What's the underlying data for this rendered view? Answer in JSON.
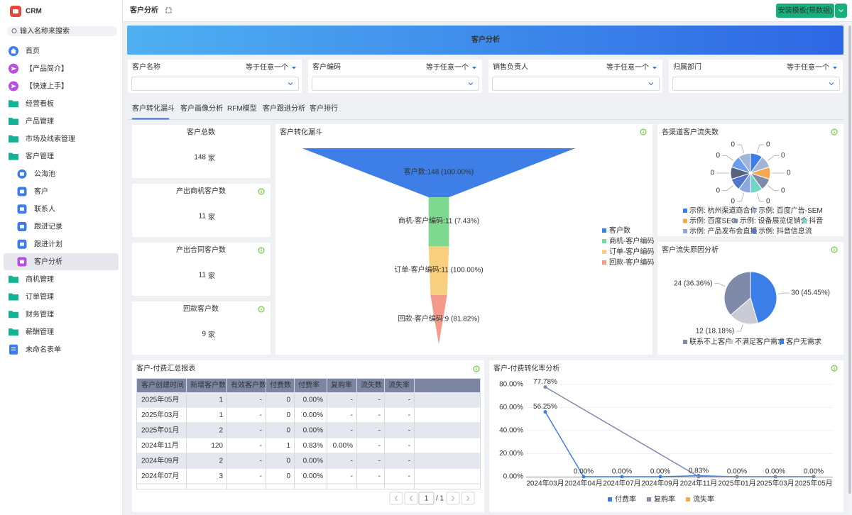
{
  "sidebar": {
    "app": "CRM",
    "search": "输入名称来搜索",
    "active_index": 12,
    "menu": [
      {
        "label": "首页",
        "level": 0
      },
      {
        "label": "【产品简介】",
        "level": 0
      },
      {
        "label": "【快速上手】",
        "level": 0
      },
      {
        "label": "经营看板",
        "level": 0
      },
      {
        "label": "产品管理",
        "level": 0
      },
      {
        "label": "市场及线索管理",
        "level": 0
      },
      {
        "label": "客户管理",
        "level": 0
      },
      {
        "label": "公海池",
        "level": 1
      },
      {
        "label": "客户",
        "level": 1
      },
      {
        "label": "联系人",
        "level": 1
      },
      {
        "label": "跟进记录",
        "level": 1
      },
      {
        "label": "跟进计划",
        "level": 1
      },
      {
        "label": "客户分析",
        "level": 1
      },
      {
        "label": "商机管理",
        "level": 0
      },
      {
        "label": "订单管理",
        "level": 0
      },
      {
        "label": "财务管理",
        "level": 0
      },
      {
        "label": "薪酬管理",
        "level": 0
      },
      {
        "label": "未命名表单",
        "level": 0
      }
    ]
  },
  "header": {
    "title": "客户分析",
    "button": "安装模板(带数据)"
  },
  "banner": "客户分析",
  "filters": [
    {
      "label": "客户名称",
      "mode": "等于任意一个"
    },
    {
      "label": "客户编码",
      "mode": "等于任意一个"
    },
    {
      "label": "销售负责人",
      "mode": "等于任意一个"
    },
    {
      "label": "归属部门",
      "mode": "等于任意一个"
    }
  ],
  "tabs": {
    "items": [
      "客户转化漏斗",
      "客户画像分析",
      "RFM模型",
      "客户跟进分析",
      "客户排行"
    ],
    "active_index": 0
  },
  "kpis": [
    {
      "title": "客户总数",
      "value": 148,
      "unit": "家"
    },
    {
      "title": "产出商机客户数",
      "value": 11,
      "unit": "家"
    },
    {
      "title": "产出合同客户数",
      "value": 11,
      "unit": "家"
    },
    {
      "title": "回款客户数",
      "value": 9,
      "unit": "家"
    }
  ],
  "funnel": {
    "type": "funnel",
    "title": "客户转化漏斗",
    "categories": [
      "客户数",
      "商机-客户编码",
      "订单-客户编码",
      "回款-客户编码"
    ],
    "values": [
      148,
      11,
      11,
      9
    ],
    "value_labels": [
      "客户数:148 (100.00%)",
      "商机-客户编码:11 (7.43%)",
      "订单-客户编码:11 (100.00%)",
      "回款-客户编码:9 (81.82%)"
    ],
    "colors": [
      "#3d7fe6",
      "#7fd88f",
      "#f7cf7e",
      "#f49a8a"
    ]
  },
  "channel_pie": {
    "type": "pie",
    "title": "各渠道客户流失数",
    "categories": [
      "示例: 杭州渠道商合作",
      "示例: 百度广告-SEM",
      "示例: 百度SEO",
      "示例: 设备展览促销会",
      "抖音",
      "示例: 产品发布会直播",
      "示例: 抖音信息流",
      null,
      null,
      null
    ],
    "values": [
      0,
      0,
      0,
      0,
      0,
      0,
      0,
      0,
      0,
      0
    ],
    "colors": [
      "#3b7ee8",
      "#a3b4d4",
      "#f5a852",
      "#7f8aa8",
      "#71d6c6",
      "#8ea6e0",
      "#4f76c8",
      "#56627f",
      "#6b9df0",
      "#9fb6d8"
    ]
  },
  "reason_pie": {
    "type": "pie",
    "title": "客户流失原因分析",
    "categories": [
      "客户无需求",
      "不满足客户需求",
      "联系不上客户"
    ],
    "values": [
      30,
      12,
      24
    ],
    "value_labels": [
      "30 (45.45%)",
      "12 (18.18%)",
      "24 (36.36%)"
    ],
    "colors": [
      "#3b7ee8",
      "#c8cbd3",
      "#7f8aa8"
    ]
  },
  "table": {
    "title": "客户-付费汇总报表",
    "columns": [
      "客户创建时间",
      "新增客户数",
      "有效客户数",
      "付费数",
      "付费率",
      "复购率",
      "流失数",
      "流失率"
    ],
    "rows": [
      [
        "2025年05月",
        1,
        "-",
        0,
        "0.00%",
        "-",
        "-",
        "-"
      ],
      [
        "2025年03月",
        1,
        "-",
        0,
        "0.00%",
        "-",
        "-",
        "-"
      ],
      [
        "2025年01月",
        2,
        "-",
        0,
        "0.00%",
        "-",
        "-",
        "-"
      ],
      [
        "2024年11月",
        120,
        "-",
        1,
        "0.83%",
        "0.00%",
        "-",
        "-"
      ],
      [
        "2024年09月",
        2,
        "-",
        0,
        "0.00%",
        "-",
        "-",
        "-"
      ],
      [
        "2024年07月",
        3,
        "-",
        0,
        "0.00%",
        "-",
        "-",
        "-"
      ]
    ],
    "pagination": {
      "page": 1,
      "total": "/ 1"
    }
  },
  "conversion_line": {
    "type": "line",
    "title": "客户-付费转化率分析",
    "categories": [
      "2024年03月",
      "2024年04月",
      "2024年07月",
      "2024年09月",
      "2024年11月",
      "2025年01月",
      "2025年03月",
      "2025年05月"
    ],
    "ylim": [
      0,
      80
    ],
    "yticks": [
      {
        "value": 0,
        "label": "0.00%"
      },
      {
        "value": 20,
        "label": "20.00%"
      },
      {
        "value": 40,
        "label": "40.00%"
      },
      {
        "value": 60,
        "label": "60.00%"
      },
      {
        "value": 80,
        "label": "80.00%"
      }
    ],
    "grid": true,
    "connect_nulls": true,
    "series": [
      {
        "name": "付费率",
        "color": "#3b7ee8",
        "values": [
          56.25,
          0,
          0,
          0,
          0.83,
          0,
          0,
          0
        ],
        "value_labels": [
          "56.25%",
          "0.00%",
          "0.00%",
          "0.00%",
          "0.83%",
          "0.00%",
          "0.00%",
          "0.00%"
        ]
      },
      {
        "name": "复购率",
        "color": "#7f8aa8",
        "values": [
          77.78,
          null,
          null,
          null,
          0,
          0,
          0,
          0
        ],
        "value_labels": [
          "77.78%",
          null,
          null,
          null,
          null,
          null,
          null,
          null
        ]
      },
      {
        "name": "流失率",
        "color": "#f5a852",
        "values": [
          null,
          null,
          null,
          null,
          null,
          null,
          null,
          null
        ]
      }
    ]
  }
}
